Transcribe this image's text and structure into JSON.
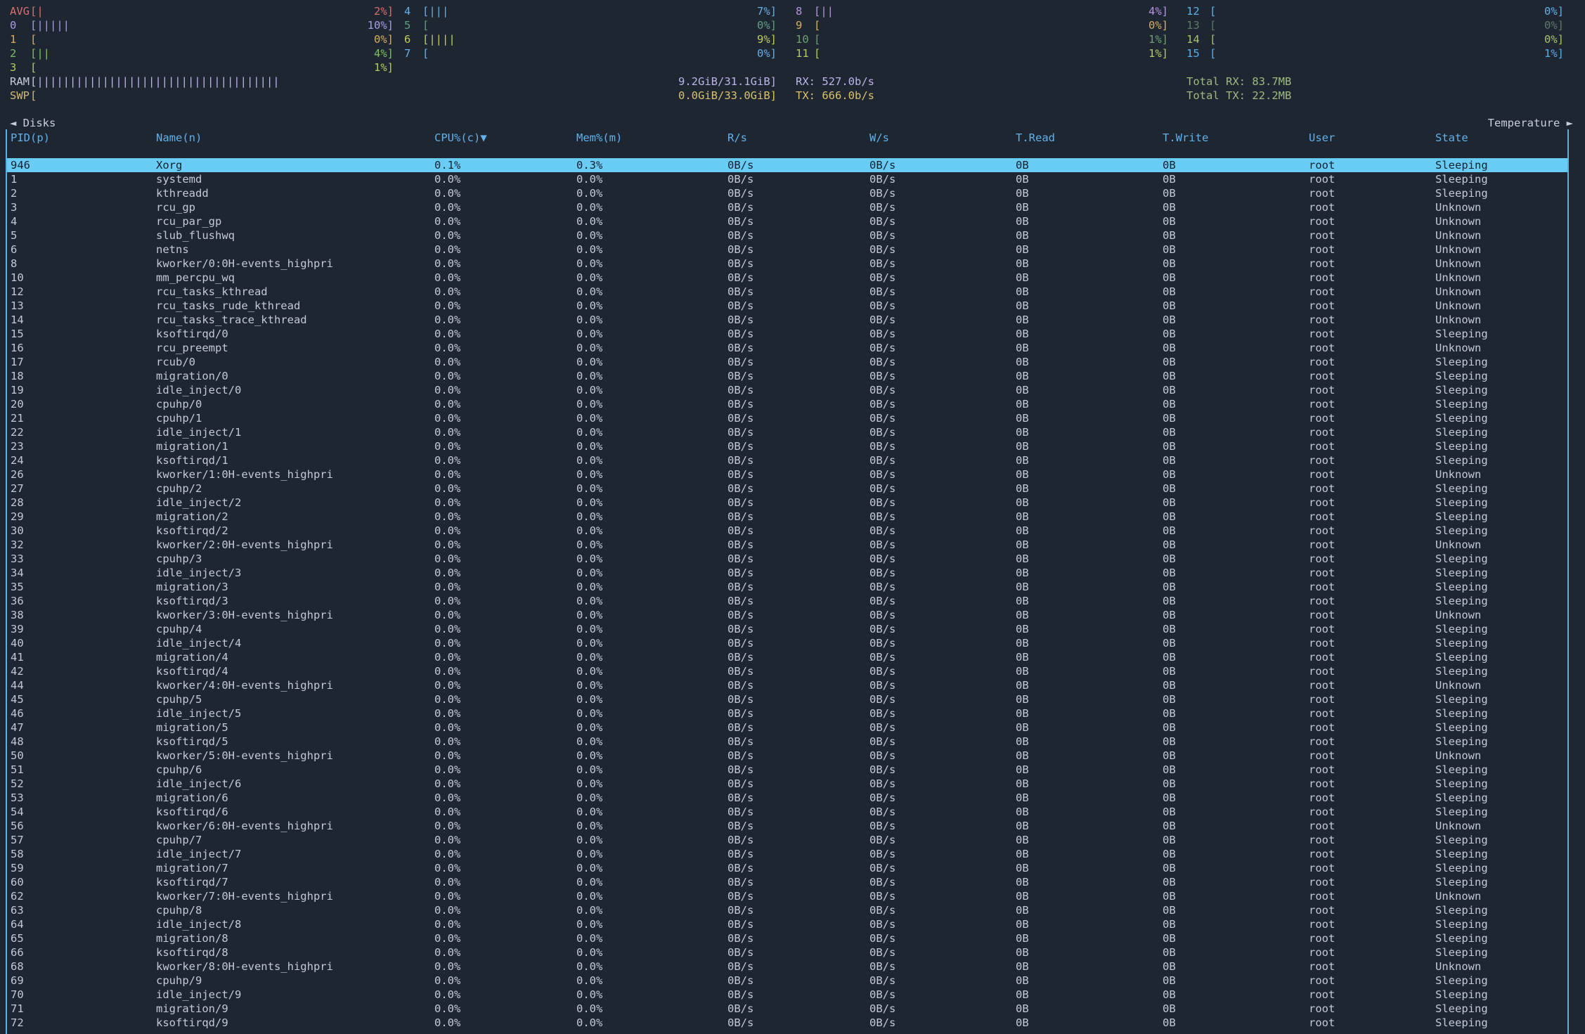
{
  "brackets": {
    "open": "[",
    "close": "]"
  },
  "colors": {
    "background": "#1e2632",
    "row_fg": "#c4cad4",
    "header_fg": "#62b1e9",
    "selected_bg": "#69ccf5",
    "selected_fg": "#13202e",
    "border": "#5fb0e0",
    "tab_fg": "#c9cfd9"
  },
  "cpu": {
    "columns": [
      [
        {
          "label": "AVG",
          "bars": "|",
          "pct": "2%",
          "color": "#d7706e"
        },
        {
          "label": "0",
          "bars": "|||||",
          "pct": "10%",
          "color": "#a89de1"
        },
        {
          "label": "1",
          "bars": "",
          "pct": "0%",
          "color": "#d8ad64"
        },
        {
          "label": "2",
          "bars": "||",
          "pct": "4%",
          "color": "#7cbf68"
        },
        {
          "label": "3",
          "bars": "",
          "pct": "1%",
          "color": "#b6c963"
        }
      ],
      [
        {
          "label": "4",
          "bars": "|||",
          "pct": "7%",
          "color": "#66aee4"
        },
        {
          "label": "5",
          "bars": "",
          "pct": "0%",
          "color": "#5f9e80"
        },
        {
          "label": "6",
          "bars": "||||",
          "pct": "9%",
          "color": "#c0cc66"
        },
        {
          "label": "7",
          "bars": "",
          "pct": "0%",
          "color": "#66aee4"
        }
      ],
      [
        {
          "label": "8",
          "bars": "||",
          "pct": "4%",
          "color": "#b494de"
        },
        {
          "label": "9",
          "bars": "",
          "pct": "0%",
          "color": "#d8ad64"
        },
        {
          "label": "10",
          "bars": "",
          "pct": "1%",
          "color": "#6f9e73"
        },
        {
          "label": "11",
          "bars": "",
          "pct": "1%",
          "color": "#b6c963"
        }
      ],
      [
        {
          "label": "12",
          "bars": "",
          "pct": "0%",
          "color": "#5fb2e9"
        },
        {
          "label": "13",
          "bars": "",
          "pct": "0%",
          "color": "#5d7a69"
        },
        {
          "label": "14",
          "bars": "",
          "pct": "0%",
          "color": "#a6c565"
        },
        {
          "label": "15",
          "bars": "",
          "pct": "1%",
          "color": "#58aee9"
        }
      ]
    ]
  },
  "memory": {
    "ram": {
      "label": "RAM",
      "bars": "|||||||||||||||||||||||||||||||||||||",
      "value": "9.2GiB/31.1GiB",
      "color": "#bdb4e7",
      "label_color": "#c8cdd6"
    },
    "swp": {
      "label": "SWP",
      "bars": "",
      "value": "0.0GiB/33.0GiB",
      "color": "#d9c26b",
      "label_color": "#d2b878"
    }
  },
  "network": {
    "rx": {
      "label": "RX:",
      "value": "527.0b/s",
      "color": "#bdb4e7"
    },
    "tx": {
      "label": "TX:",
      "value": "666.0b/s",
      "color": "#d9c26b"
    },
    "total_rx": {
      "label": "Total RX:",
      "value": "83.7MB",
      "color": "#9fba80"
    },
    "total_tx": {
      "label": "Total TX:",
      "value": "22.2MB",
      "color": "#9fba80"
    }
  },
  "tabs": {
    "disks": "◄ Disks",
    "temperature": "Temperature ►"
  },
  "process_table": {
    "columns": [
      "PID(p)",
      "Name(n)",
      "CPU%(c)▼",
      "Mem%(m)",
      "R/s",
      "W/s",
      "T.Read",
      "T.Write",
      "User",
      "State"
    ],
    "selected_row": {
      "pid": "946",
      "name": "Xorg",
      "cpu": "0.1%",
      "mem": "0.3%",
      "r": "0B/s",
      "w": "0B/s",
      "t_read": "0B",
      "t_write": "0B",
      "user": "root",
      "state": "Sleeping"
    },
    "row_defaults": {
      "cpu": "0.0%",
      "mem": "0.0%",
      "r": "0B/s",
      "w": "0B/s",
      "t_read": "0B",
      "t_write": "0B",
      "user": "root"
    },
    "rows": [
      [
        "1",
        "systemd",
        "Sleeping"
      ],
      [
        "2",
        "kthreadd",
        "Sleeping"
      ],
      [
        "3",
        "rcu_gp",
        "Unknown"
      ],
      [
        "4",
        "rcu_par_gp",
        "Unknown"
      ],
      [
        "5",
        "slub_flushwq",
        "Unknown"
      ],
      [
        "6",
        "netns",
        "Unknown"
      ],
      [
        "8",
        "kworker/0:0H-events_highpri",
        "Unknown"
      ],
      [
        "10",
        "mm_percpu_wq",
        "Unknown"
      ],
      [
        "12",
        "rcu_tasks_kthread",
        "Unknown"
      ],
      [
        "13",
        "rcu_tasks_rude_kthread",
        "Unknown"
      ],
      [
        "14",
        "rcu_tasks_trace_kthread",
        "Unknown"
      ],
      [
        "15",
        "ksoftirqd/0",
        "Sleeping"
      ],
      [
        "16",
        "rcu_preempt",
        "Unknown"
      ],
      [
        "17",
        "rcub/0",
        "Sleeping"
      ],
      [
        "18",
        "migration/0",
        "Sleeping"
      ],
      [
        "19",
        "idle_inject/0",
        "Sleeping"
      ],
      [
        "20",
        "cpuhp/0",
        "Sleeping"
      ],
      [
        "21",
        "cpuhp/1",
        "Sleeping"
      ],
      [
        "22",
        "idle_inject/1",
        "Sleeping"
      ],
      [
        "23",
        "migration/1",
        "Sleeping"
      ],
      [
        "24",
        "ksoftirqd/1",
        "Sleeping"
      ],
      [
        "26",
        "kworker/1:0H-events_highpri",
        "Unknown"
      ],
      [
        "27",
        "cpuhp/2",
        "Sleeping"
      ],
      [
        "28",
        "idle_inject/2",
        "Sleeping"
      ],
      [
        "29",
        "migration/2",
        "Sleeping"
      ],
      [
        "30",
        "ksoftirqd/2",
        "Sleeping"
      ],
      [
        "32",
        "kworker/2:0H-events_highpri",
        "Unknown"
      ],
      [
        "33",
        "cpuhp/3",
        "Sleeping"
      ],
      [
        "34",
        "idle_inject/3",
        "Sleeping"
      ],
      [
        "35",
        "migration/3",
        "Sleeping"
      ],
      [
        "36",
        "ksoftirqd/3",
        "Sleeping"
      ],
      [
        "38",
        "kworker/3:0H-events_highpri",
        "Unknown"
      ],
      [
        "39",
        "cpuhp/4",
        "Sleeping"
      ],
      [
        "40",
        "idle_inject/4",
        "Sleeping"
      ],
      [
        "41",
        "migration/4",
        "Sleeping"
      ],
      [
        "42",
        "ksoftirqd/4",
        "Sleeping"
      ],
      [
        "44",
        "kworker/4:0H-events_highpri",
        "Unknown"
      ],
      [
        "45",
        "cpuhp/5",
        "Sleeping"
      ],
      [
        "46",
        "idle_inject/5",
        "Sleeping"
      ],
      [
        "47",
        "migration/5",
        "Sleeping"
      ],
      [
        "48",
        "ksoftirqd/5",
        "Sleeping"
      ],
      [
        "50",
        "kworker/5:0H-events_highpri",
        "Unknown"
      ],
      [
        "51",
        "cpuhp/6",
        "Sleeping"
      ],
      [
        "52",
        "idle_inject/6",
        "Sleeping"
      ],
      [
        "53",
        "migration/6",
        "Sleeping"
      ],
      [
        "54",
        "ksoftirqd/6",
        "Sleeping"
      ],
      [
        "56",
        "kworker/6:0H-events_highpri",
        "Unknown"
      ],
      [
        "57",
        "cpuhp/7",
        "Sleeping"
      ],
      [
        "58",
        "idle_inject/7",
        "Sleeping"
      ],
      [
        "59",
        "migration/7",
        "Sleeping"
      ],
      [
        "60",
        "ksoftirqd/7",
        "Sleeping"
      ],
      [
        "62",
        "kworker/7:0H-events_highpri",
        "Unknown"
      ],
      [
        "63",
        "cpuhp/8",
        "Sleeping"
      ],
      [
        "64",
        "idle_inject/8",
        "Sleeping"
      ],
      [
        "65",
        "migration/8",
        "Sleeping"
      ],
      [
        "66",
        "ksoftirqd/8",
        "Sleeping"
      ],
      [
        "68",
        "kworker/8:0H-events_highpri",
        "Unknown"
      ],
      [
        "69",
        "cpuhp/9",
        "Sleeping"
      ],
      [
        "70",
        "idle_inject/9",
        "Sleeping"
      ],
      [
        "71",
        "migration/9",
        "Sleeping"
      ],
      [
        "72",
        "ksoftirqd/9",
        "Sleeping"
      ]
    ]
  }
}
